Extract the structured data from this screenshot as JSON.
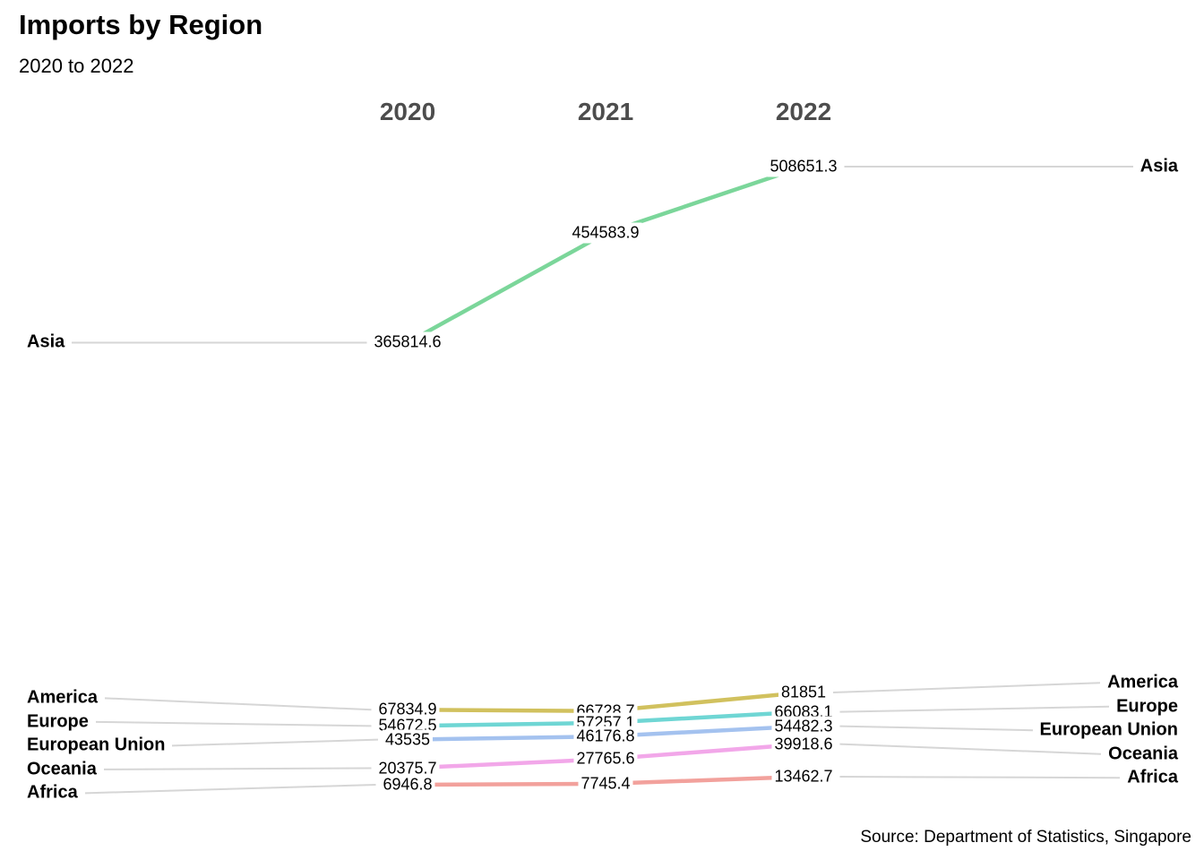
{
  "header": {
    "title": "Imports by Region",
    "subtitle": "2020 to 2022"
  },
  "source": "Source: Department of Statistics, Singapore",
  "colors": {
    "background": "#ffffff",
    "column_header_text": "#4d4d4d",
    "leader_line": "#d6d6d6",
    "label_text": "#000000"
  },
  "chart_data": {
    "type": "line",
    "variant": "slopegraph",
    "title": "Imports by Region",
    "subtitle": "2020 to 2022",
    "x": [
      "2020",
      "2021",
      "2022"
    ],
    "series": [
      {
        "name": "Asia",
        "color": "#7bd69a",
        "values": [
          365814.6,
          454583.9,
          508651.3
        ]
      },
      {
        "name": "America",
        "color": "#d1c15e",
        "values": [
          67834.9,
          66728.7,
          81851
        ]
      },
      {
        "name": "Europe",
        "color": "#6fd6d4",
        "values": [
          54672.5,
          57257.1,
          66083.1
        ]
      },
      {
        "name": "European Union",
        "color": "#a4c2ef",
        "values": [
          43535,
          46176.8,
          54482.3
        ]
      },
      {
        "name": "Oceania",
        "color": "#f2a7e9",
        "values": [
          20375.7,
          27765.6,
          39918.6
        ]
      },
      {
        "name": "Africa",
        "color": "#f2a19c",
        "values": [
          6946.8,
          7745.4,
          13462.7
        ]
      }
    ],
    "ylim": [
      6946.8,
      508651.3
    ],
    "grid": false,
    "legend": "direct labels on left and right of lines",
    "caption": "Source: Department of Statistics, Singapore"
  }
}
